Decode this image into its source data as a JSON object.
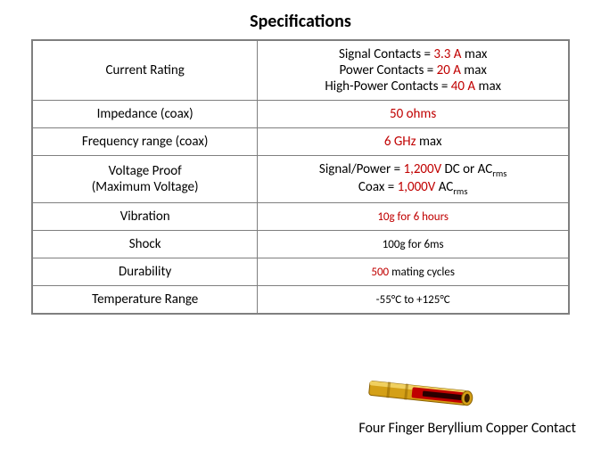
{
  "title": "Specifications",
  "rows": [
    {
      "label_lines": [
        "Current Rating"
      ],
      "label_class": "",
      "value_html": "Signal Contacts = <span class='red'>3.3 A</span> max<br>Power Contacts = <span class='red'>20 A</span> max<br>High-Power Contacts = <span class='red'>40 A</span> max"
    },
    {
      "label_lines": [
        "Impedance (coax)"
      ],
      "label_class": "",
      "value_html": "<span class='red'>50 ohms</span>"
    },
    {
      "label_lines": [
        "Frequency range (coax)"
      ],
      "label_class": "",
      "value_html": "<span class='red'>6 GHz</span> max"
    },
    {
      "label_lines": [
        "Voltage Proof",
        "(Maximum Voltage)"
      ],
      "label_class": "",
      "value_html": "Signal/Power = <span class='red'>1,200V</span> DC or AC<sub>rms</sub><br>Coax = <span class='red'>1,000V</span> AC<sub>rms</sub>"
    },
    {
      "label_lines": [
        "Vibration"
      ],
      "label_class": "sm",
      "value_html": "<span class='sm'><span class='red'>10g for 6 hours</span></span>"
    },
    {
      "label_lines": [
        "Shock"
      ],
      "label_class": "sm",
      "value_html": "<span class='sm'>100g for 6ms</span>"
    },
    {
      "label_lines": [
        "Durability"
      ],
      "label_class": "sm",
      "value_html": "<span class='sm'><span class='red'>500</span> mating cycles</span>"
    },
    {
      "label_lines": [
        "Temperature Range"
      ],
      "label_class": "sm",
      "value_html": "<span class='sm'>-55°C to +125°C</span>"
    }
  ],
  "caption": "Four Finger Beryllium Copper Contact",
  "connector": {
    "body_fill": "#d4a017",
    "body_stroke": "#8a6000",
    "inner_fill": "#c00000",
    "highlight": "#f0d060"
  }
}
